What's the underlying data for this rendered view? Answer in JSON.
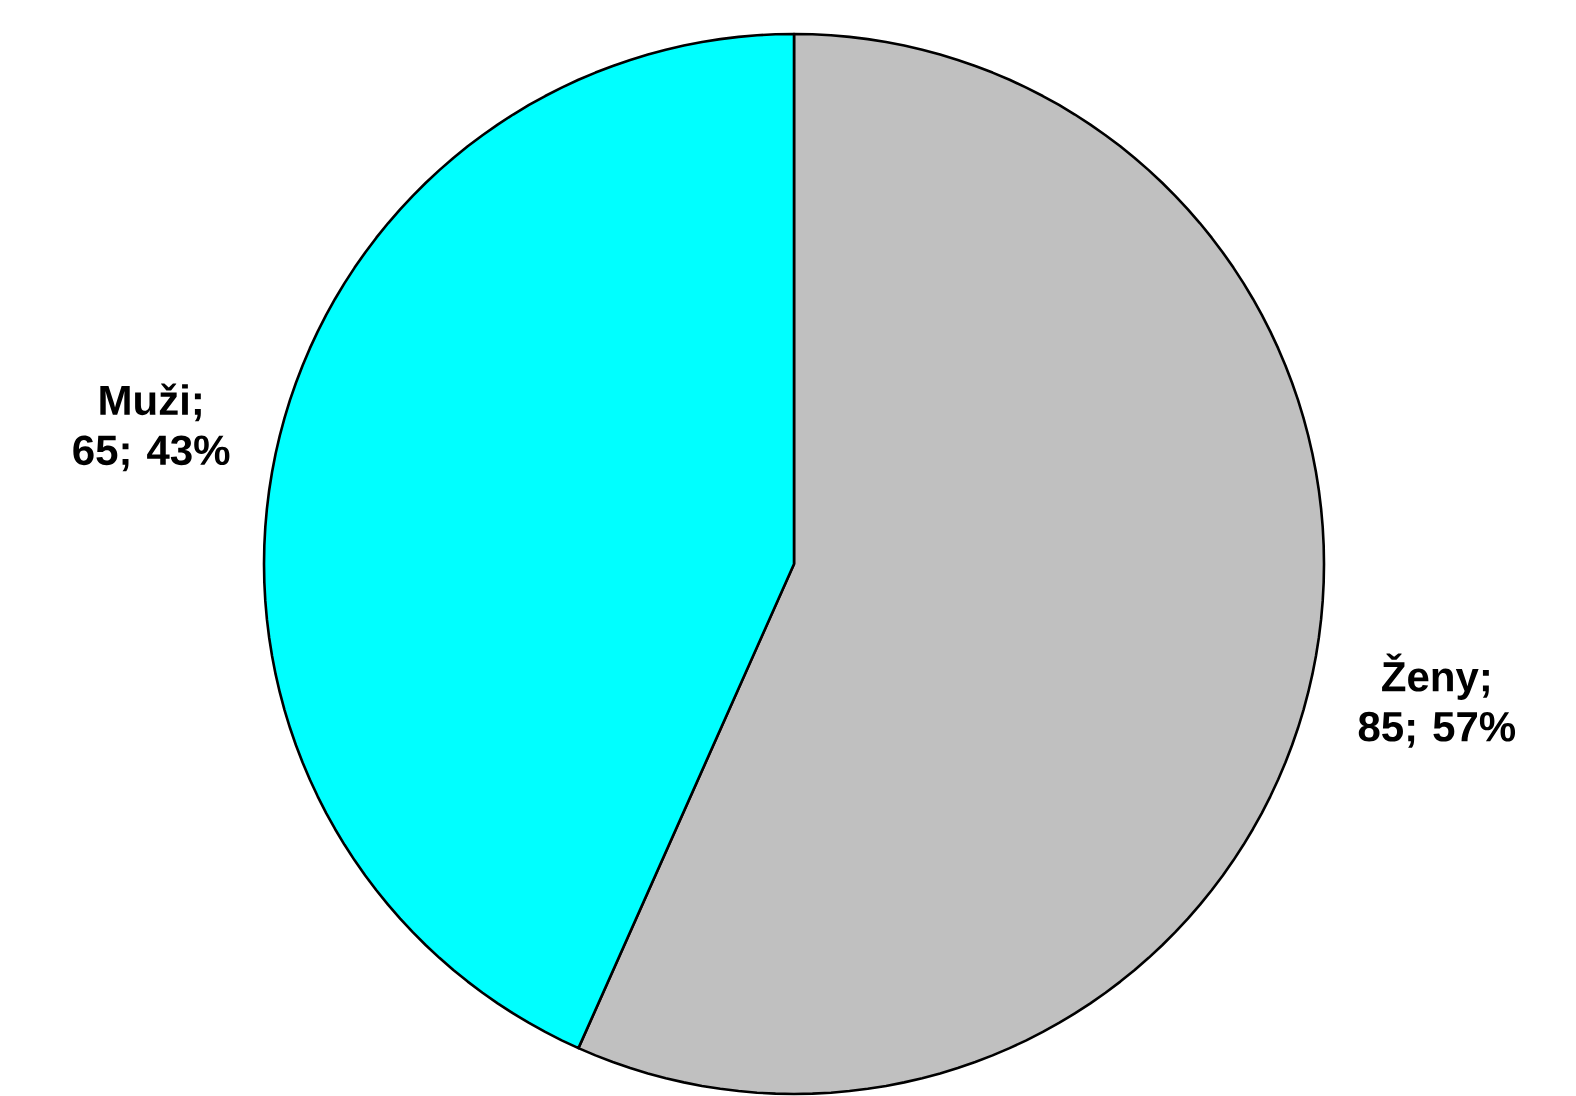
{
  "chart_data": {
    "type": "pie",
    "categories": [
      "Ženy",
      "Muži"
    ],
    "values": [
      85,
      65
    ],
    "value_labels": [
      "; 85; 57%",
      "; 65; 43%"
    ],
    "colors": [
      "#c0c0c0",
      "#00ffff"
    ]
  }
}
